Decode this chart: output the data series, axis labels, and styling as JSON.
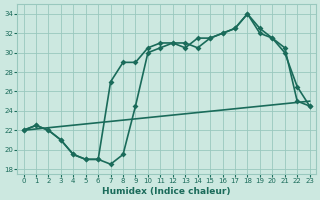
{
  "xlabel": "Humidex (Indice chaleur)",
  "bg_color": "#cce8e0",
  "grid_color": "#99c8be",
  "line_color": "#1a6b5a",
  "ylim": [
    17.5,
    35.0
  ],
  "xlim": [
    -0.5,
    23.5
  ],
  "yticks": [
    18,
    20,
    22,
    24,
    26,
    28,
    30,
    32,
    34
  ],
  "xticks": [
    0,
    1,
    2,
    3,
    4,
    5,
    6,
    7,
    8,
    9,
    10,
    11,
    12,
    13,
    14,
    15,
    16,
    17,
    18,
    19,
    20,
    21,
    22,
    23
  ],
  "line1_x": [
    0,
    1,
    2,
    3,
    4,
    5,
    6,
    7,
    8,
    9,
    10,
    11,
    12,
    13,
    14,
    15,
    16,
    17,
    18,
    19,
    20,
    21,
    22,
    23
  ],
  "line1_y": [
    22.0,
    22.5,
    22.0,
    21.0,
    19.5,
    19.0,
    19.0,
    18.5,
    19.5,
    24.5,
    30.0,
    30.5,
    31.0,
    31.0,
    30.5,
    31.5,
    32.0,
    32.5,
    34.0,
    32.5,
    31.5,
    30.5,
    25.0,
    24.5
  ],
  "line2_x": [
    0,
    1,
    2,
    3,
    4,
    5,
    6,
    7,
    8,
    9,
    10,
    11,
    12,
    13,
    14,
    15,
    16,
    17,
    18,
    19,
    20,
    21,
    22,
    23
  ],
  "line2_y": [
    22.0,
    22.5,
    22.0,
    21.0,
    19.5,
    19.0,
    19.0,
    27.0,
    29.0,
    29.0,
    30.5,
    31.0,
    31.0,
    30.5,
    31.5,
    31.5,
    32.0,
    32.5,
    34.0,
    32.0,
    31.5,
    30.0,
    26.5,
    24.5
  ],
  "line3_x": [
    0,
    23
  ],
  "line3_y": [
    22.0,
    25.0
  ],
  "markersize": 3,
  "linewidth": 1.2
}
